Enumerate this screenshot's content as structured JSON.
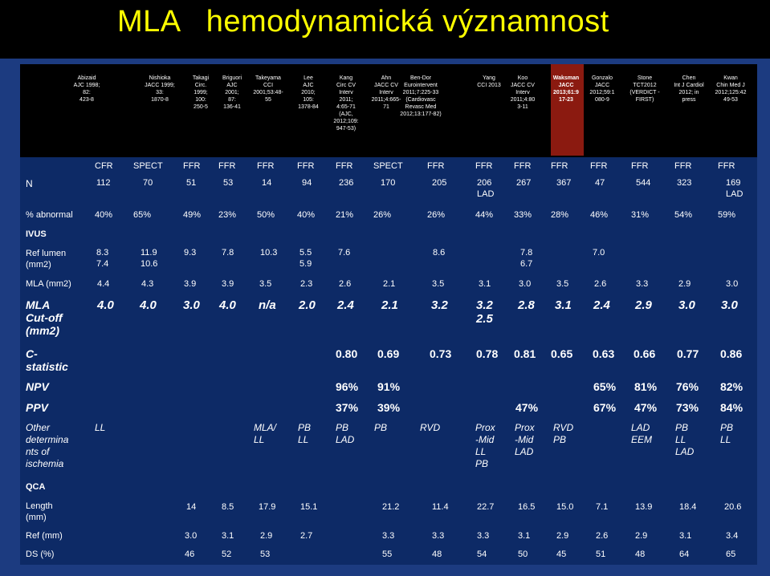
{
  "title": "MLA   hemodynamická významnost",
  "studies": [
    {
      "text": "Abizaid\nAJC 1998;\n82:\n423-8"
    },
    {
      "text": "Nishioka\nJACC 1999;\n33:\n1870-8"
    },
    {
      "text": "Takagi\nCirc.\n1999;\n100:\n250-5"
    },
    {
      "text": "Briguori\nAJC\n2001;\n87:\n136-41"
    },
    {
      "text": "Takeyama\nCCI\n2001;53:48-\n55"
    },
    {
      "text": "Lee\nAJC\n2010;\n105:\n1378-84"
    },
    {
      "text": "Kang\nCirc CV\nInterv\n2011;\n4:65-71\n(AJC,\n2012;109:\n947-53)"
    },
    {
      "text": "Ahn\nJACC CV\nInterv\n2011;4:665-\n71"
    },
    {
      "text": "Ben-Dor\nEurointervent\n2011;7:225-33\n(Cardiovasc\nRevasc Med\n2012;13:177-82)"
    },
    {
      "text": "Yang\nCCI 2013"
    },
    {
      "text": "Koo\nJACC CV\nInterv\n2011;4:80\n3-11"
    },
    {
      "text": "Waksman\nJACC\n2013;61:9\n17-23"
    },
    {
      "text": "Gonzalo\nJACC\n2012;59:1\n080-9"
    },
    {
      "text": "Stone\nTCT2012\n(VERDICT -\nFIRST)"
    },
    {
      "text": "Chen\nInt J Cardiol\n2012; in\npress"
    },
    {
      "text": "Kwan\nChin Med J\n2012;125:42\n49-53"
    }
  ],
  "methods": [
    "CFR",
    "SPECT",
    "FFR",
    "FFR",
    "FFR",
    "FFR",
    "FFR",
    "SPECT",
    "FFR",
    "FFR",
    "FFR",
    "FFR",
    "FFR",
    "FFR",
    "FFR",
    "FFR"
  ],
  "labels": {
    "n": "N",
    "abnormal": "% abnormal",
    "ivus": "IVUS",
    "ref_lumen": "Ref lumen\n(mm2)",
    "mla": "MLA (mm2)",
    "cutoff": "MLA\nCut-off\n(mm2)",
    "cstat": "C-\nstatistic",
    "npv": "NPV",
    "ppv": "PPV",
    "other": "Other\ndetermina\nnts of\nischemia",
    "qca": "QCA",
    "length": "Length\n(mm)",
    "ref": "Ref (mm)",
    "ds": "DS (%)"
  },
  "n_values": [
    "112",
    "70",
    "51",
    "53",
    "14",
    "94",
    "236",
    "170",
    "205",
    "206\nLAD",
    "267",
    "367",
    "47",
    "544",
    "323",
    "169\nLAD"
  ],
  "abnormal_values": [
    "40%",
    "65%",
    "49%",
    "23%",
    "50%",
    "40%",
    "21%",
    "26%",
    "26%",
    "44%",
    "33%",
    "28%",
    "46%",
    "31%",
    "54%",
    "59%"
  ],
  "ref_lumen_values": [
    "8.3\n7.4",
    "11.9\n10.6",
    "9.3",
    "7.8",
    "10.3",
    "5.5\n5.9",
    "7.6",
    "8.6",
    "7.8\n6.7",
    "7.0"
  ],
  "mla_values": [
    "4.4",
    "4.3",
    "3.9",
    "3.9",
    "3.5",
    "2.3",
    "2.6",
    "2.1",
    "3.5",
    "3.1",
    "3.0",
    "3.5",
    "2.6",
    "3.3",
    "2.9",
    "3.0"
  ],
  "cutoff_values": [
    "4.0",
    "4.0",
    "3.0",
    "4.0",
    "n/a",
    "2.0",
    "2.4",
    "2.1",
    "3.2",
    "3.2\n2.5",
    "2.8",
    "3.1",
    "2.4",
    "2.9",
    "3.0",
    "3.0"
  ],
  "cstat_values": [
    "0.80",
    "0.69",
    "0.73",
    "0.78",
    "0.81",
    "0.65",
    "0.63",
    "0.66",
    "0.77",
    "0.86"
  ],
  "npv_values": [
    "96%",
    "91%",
    "65%",
    "81%",
    "76%",
    "82%"
  ],
  "ppv_values": [
    "37%",
    "39%",
    "47%",
    "67%",
    "47%",
    "73%",
    "84%"
  ],
  "other_values": [
    "LL",
    "MLA/\nLL",
    "PB\nLL",
    "PB\nLAD",
    "PB",
    "RVD",
    "Prox\n-Mid\nLL\nPB",
    "Prox\n-Mid\nLAD",
    "RVD\nPB",
    "LAD\nEEM",
    "PB\nLL\nLAD",
    "PB\nLL"
  ],
  "length_values": [
    "14",
    "8.5",
    "17.9",
    "15.1",
    "21.2",
    "11.4",
    "22.7",
    "16.5",
    "15.0",
    "7.1",
    "13.9",
    "18.4",
    "20.6"
  ],
  "ref_values": [
    "3.0",
    "3.1",
    "2.9",
    "2.7",
    "3.3",
    "3.3",
    "3.3",
    "3.1",
    "2.9",
    "2.6",
    "2.9",
    "3.1",
    "3.4"
  ],
  "ds_values": [
    "46",
    "52",
    "53",
    "55",
    "48",
    "54",
    "50",
    "45",
    "51",
    "48",
    "64",
    "65"
  ],
  "colors": {
    "title": "#ffff00",
    "background": "#1c3b80",
    "panel": "#000000",
    "band": "#0d2a66",
    "highlight": "#8b1a10"
  }
}
